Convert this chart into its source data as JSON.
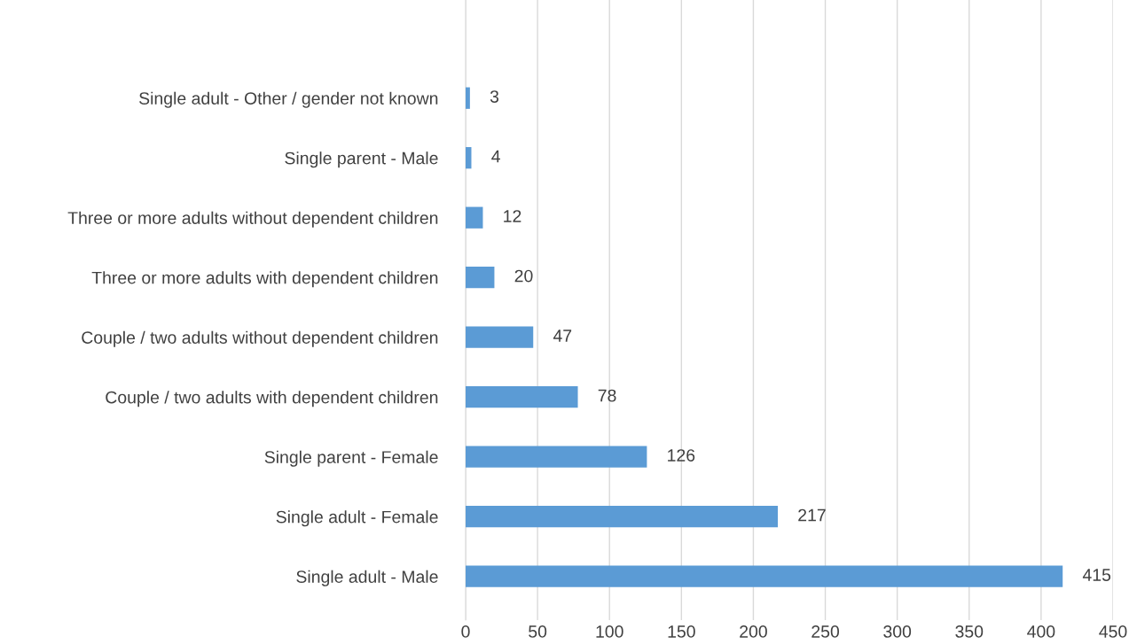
{
  "chart_data": {
    "type": "bar",
    "orientation": "horizontal",
    "categories": [
      "Single adult - Other / gender not known",
      "Single parent - Male",
      "Three or more adults without dependent children",
      "Three or more adults with dependent children",
      "Couple / two adults without dependent children",
      "Couple / two adults with dependent children",
      "Single parent - Female",
      "Single adult - Female",
      "Single adult - Male"
    ],
    "values": [
      3,
      4,
      12,
      20,
      47,
      78,
      126,
      217,
      415
    ],
    "color": "#5b9bd5",
    "xlim": [
      0,
      450
    ],
    "xticks": [
      0,
      50,
      100,
      150,
      200,
      250,
      300,
      350,
      400,
      450
    ],
    "grid": "x",
    "data_labels": true
  }
}
